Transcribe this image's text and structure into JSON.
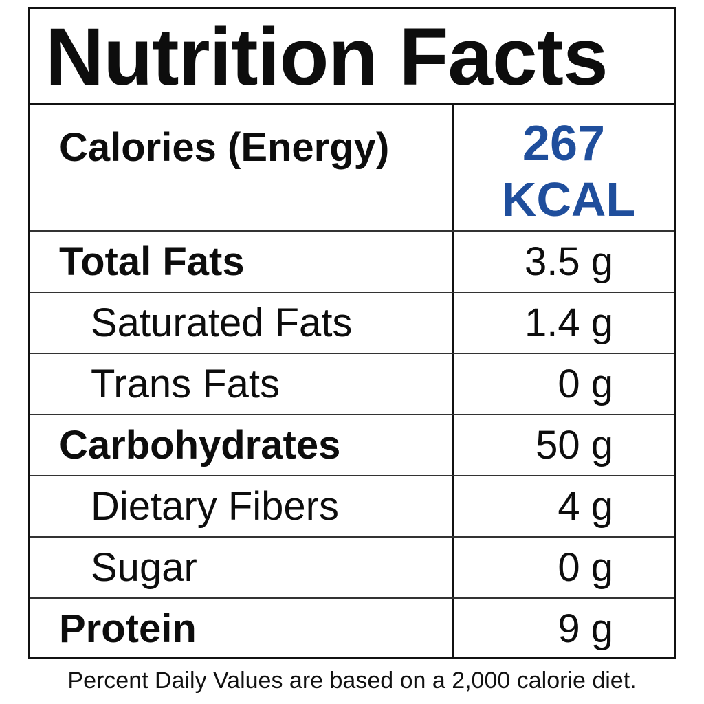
{
  "title": "Nutrition Facts",
  "calories": {
    "label": "Calories (Energy)",
    "value": "267",
    "unit": "KCAL",
    "color": "#1f4e9c"
  },
  "nutrients": [
    {
      "label": "Total Fats",
      "amount": "3.5 g",
      "style": "main"
    },
    {
      "label": "Saturated Fats",
      "amount": "1.4 g",
      "style": "sub"
    },
    {
      "label": "Trans Fats",
      "amount": "0 g",
      "style": "sub"
    },
    {
      "label": "Carbohydrates",
      "amount": "50 g",
      "style": "main"
    },
    {
      "label": "Dietary Fibers",
      "amount": "4 g",
      "style": "sub"
    },
    {
      "label": "Sugar",
      "amount": "0 g",
      "style": "sub"
    },
    {
      "label": "Protein",
      "amount": "9 g",
      "style": "main"
    }
  ],
  "footnote": "Percent Daily Values are based on a 2,000 calorie diet."
}
